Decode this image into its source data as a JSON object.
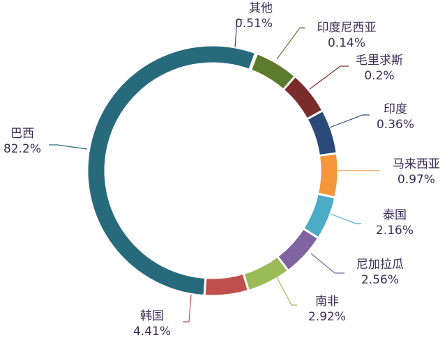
{
  "chart_data": {
    "type": "pie",
    "donut": true,
    "title": "",
    "order": "clockwise-from-top",
    "categories": [
      "其他",
      "印度尼西亚",
      "毛里求斯",
      "印度",
      "马来西亚",
      "泰国",
      "尼加拉瓜",
      "南非",
      "韩国",
      "巴西"
    ],
    "values": [
      0.51,
      0.14,
      0.2,
      0.36,
      0.97,
      2.16,
      2.56,
      2.92,
      4.41,
      82.2
    ],
    "value_labels": [
      "0.51%",
      "0.14%",
      "0.2%",
      "0.36%",
      "0.97%",
      "2.16%",
      "2.56%",
      "2.92%",
      "4.41%",
      "82.2%"
    ],
    "slices": [
      {
        "label": "其他",
        "value_label": "0.51%",
        "color": "#4f3b6b"
      },
      {
        "label": "印度尼西亚",
        "value_label": "0.14%",
        "color": "#5e7a2c"
      },
      {
        "label": "毛里求斯",
        "value_label": "0.2%",
        "color": "#7a2c2a"
      },
      {
        "label": "印度",
        "value_label": "0.36%",
        "color": "#2a4a7a"
      },
      {
        "label": "马来西亚",
        "value_label": "0.97%",
        "color": "#f5963a"
      },
      {
        "label": "泰国",
        "value_label": "2.16%",
        "color": "#4aacc6"
      },
      {
        "label": "尼加拉瓜",
        "value_label": "2.56%",
        "color": "#8064a2"
      },
      {
        "label": "南非",
        "value_label": "2.92%",
        "color": "#9bbb59"
      },
      {
        "label": "韩国",
        "value_label": "4.41%",
        "color": "#c0504d"
      },
      {
        "label": "巴西",
        "value_label": "82.2%",
        "color": "#276a7c"
      }
    ],
    "label_text_color": "#3a2e55"
  }
}
